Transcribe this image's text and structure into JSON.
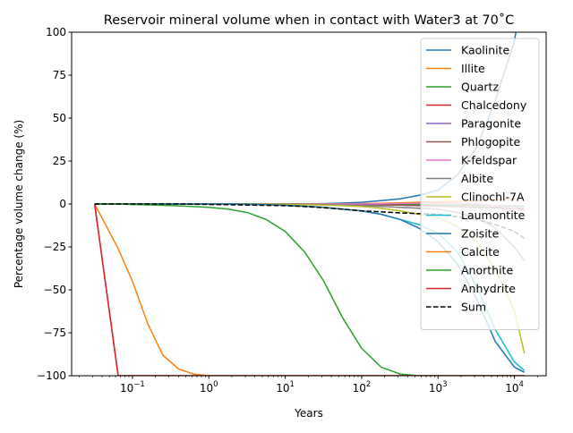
{
  "chart_data": {
    "type": "line",
    "title": "Reservoir mineral volume when in contact with Water3 at 70˚C",
    "xlabel": "Years",
    "ylabel": "Percentage volume change (%)",
    "xscale": "log",
    "xlim": [
      0.016,
      26000
    ],
    "ylim": [
      -100,
      100
    ],
    "xticks": [
      "10^-1",
      "10^0",
      "10^1",
      "10^2",
      "10^3",
      "10^4"
    ],
    "xtick_values": [
      0.1,
      1,
      10,
      100,
      1000,
      10000
    ],
    "yticks": [
      -100,
      -75,
      -50,
      -25,
      0,
      25,
      50,
      75,
      100
    ],
    "grid": false,
    "legend_position": "top-right",
    "x": [
      0.032,
      0.065,
      0.1,
      0.16,
      0.25,
      0.4,
      0.63,
      1,
      1.8,
      3.2,
      5.6,
      10,
      18,
      32,
      56,
      100,
      180,
      320,
      560,
      1000,
      1800,
      3200,
      5600,
      10000,
      13500
    ],
    "series": [
      {
        "name": "Kaolinite",
        "color": "#1f77b4",
        "values": [
          0,
          0,
          0,
          0,
          0,
          0,
          0,
          0,
          0,
          0,
          0,
          0,
          0,
          0.2,
          0.5,
          1,
          2,
          3,
          5,
          8,
          17,
          33,
          60,
          95,
          130
        ]
      },
      {
        "name": "Illite",
        "color": "#ff7f0e",
        "values": [
          0,
          0,
          0,
          0,
          0,
          0,
          0,
          0,
          0,
          0,
          0,
          0,
          0,
          0,
          0,
          0.2,
          0.4,
          0.6,
          1,
          1.2,
          1.5,
          2,
          2.5,
          3,
          3.5
        ]
      },
      {
        "name": "Quartz",
        "color": "#2ca02c",
        "values": [
          0,
          0,
          0,
          0,
          0,
          0,
          0,
          0,
          0,
          0,
          0,
          0,
          0,
          0,
          0,
          0,
          0,
          -0.2,
          -0.3,
          -0.5,
          -0.6,
          -0.8,
          -1,
          -1.2,
          -1.3
        ]
      },
      {
        "name": "Chalcedony",
        "color": "#d62728",
        "values": [
          0,
          -100,
          -100,
          -100,
          -100,
          -100,
          -100,
          -100,
          -100,
          -100,
          -100,
          -100,
          -100,
          -100,
          -100,
          -100,
          -100,
          -100,
          -100,
          -100,
          -100,
          -100,
          -100,
          -100,
          -100
        ]
      },
      {
        "name": "Paragonite",
        "color": "#9467bd",
        "values": [
          0,
          0,
          0,
          0,
          0,
          0,
          0,
          0,
          0,
          0,
          0,
          0,
          0,
          0,
          -0.2,
          -0.3,
          -0.5,
          -0.7,
          -1,
          -1.3,
          -1.6,
          -2,
          -2.3,
          -2.7,
          -3
        ]
      },
      {
        "name": "Phlogopite",
        "color": "#8c564b",
        "values": [
          0,
          0,
          0,
          0,
          0,
          0,
          0,
          0,
          0,
          0,
          0,
          0,
          0,
          0,
          -0.2,
          -0.3,
          -0.5,
          -0.7,
          -1,
          -1.2,
          -1.5,
          -1.8,
          -2,
          -2.3,
          -2.5
        ]
      },
      {
        "name": "K-feldspar",
        "color": "#e377c2",
        "values": [
          0,
          0,
          0,
          0,
          0,
          0,
          0,
          0,
          0,
          0,
          0,
          0,
          0,
          0,
          0,
          0,
          0.2,
          0.3,
          0.4,
          0.5,
          0.3,
          0,
          -1,
          -2.5,
          -4
        ]
      },
      {
        "name": "Albite",
        "color": "#7f7f7f",
        "values": [
          0,
          0,
          0,
          0,
          0,
          0,
          0,
          0,
          0,
          0,
          0,
          0,
          -0.2,
          -0.4,
          -0.6,
          -1,
          -1.4,
          -2,
          -2.5,
          -3,
          -5,
          -8,
          -14,
          -25,
          -33
        ]
      },
      {
        "name": "Clinochl-7A",
        "color": "#bcbd22",
        "values": [
          0,
          0,
          0,
          0,
          0,
          0,
          0,
          0,
          0,
          0,
          0,
          -0.2,
          -0.4,
          -0.7,
          -1,
          -1.5,
          -2.5,
          -4,
          -6,
          -8,
          -13,
          -22,
          -38,
          -62,
          -87
        ]
      },
      {
        "name": "Laumontite",
        "color": "#17becf",
        "values": [
          0,
          0,
          0,
          0,
          0,
          0,
          0,
          0,
          0,
          -0.2,
          -0.4,
          -0.8,
          -1.3,
          -2,
          -3,
          -4,
          -6,
          -9,
          -12,
          -17,
          -28,
          -48,
          -73,
          -92,
          -97
        ]
      },
      {
        "name": "Zoisite",
        "color": "#1f77b4",
        "values": [
          0,
          0,
          0,
          0,
          0,
          0,
          0,
          0,
          0,
          -0.2,
          -0.4,
          -0.8,
          -1.3,
          -2,
          -3,
          -4,
          -6,
          -9,
          -14,
          -22,
          -35,
          -55,
          -80,
          -95,
          -98
        ]
      },
      {
        "name": "Calcite",
        "color": "#ff7f0e",
        "values": [
          0,
          -26,
          -45,
          -70,
          -88,
          -96,
          -99,
          -100,
          -100,
          -100,
          -100,
          -100,
          -100,
          -100,
          -100,
          -100,
          -100,
          -100,
          -100,
          -100,
          -100,
          -100,
          -100,
          -100,
          -100
        ]
      },
      {
        "name": "Anorthite",
        "color": "#2ca02c",
        "values": [
          0,
          0,
          -0.3,
          -0.5,
          -0.8,
          -1.1,
          -1.5,
          -2,
          -3,
          -5,
          -9,
          -16,
          -28,
          -45,
          -66,
          -84,
          -95,
          -99,
          -100,
          -100,
          -100,
          -100,
          -100,
          -100,
          -100
        ]
      },
      {
        "name": "Anhydrite",
        "color": "#d62728",
        "values": [
          0,
          -100,
          -100,
          -100,
          -100,
          -100,
          -100,
          -100,
          -100,
          -100,
          -100,
          -100,
          -100,
          -100,
          -100,
          -100,
          -100,
          -100,
          -100,
          -100,
          -100,
          -100,
          -100,
          -100,
          -100
        ]
      },
      {
        "name": "Sum",
        "color": "#000000",
        "dashed": true,
        "values": [
          0,
          0,
          0,
          0,
          0,
          0,
          -0.1,
          -0.3,
          -0.4,
          -0.6,
          -0.8,
          -1,
          -1.5,
          -2.2,
          -3,
          -4,
          -4.6,
          -5.2,
          -5.6,
          -6,
          -7.5,
          -9,
          -12,
          -16,
          -20
        ]
      }
    ]
  }
}
